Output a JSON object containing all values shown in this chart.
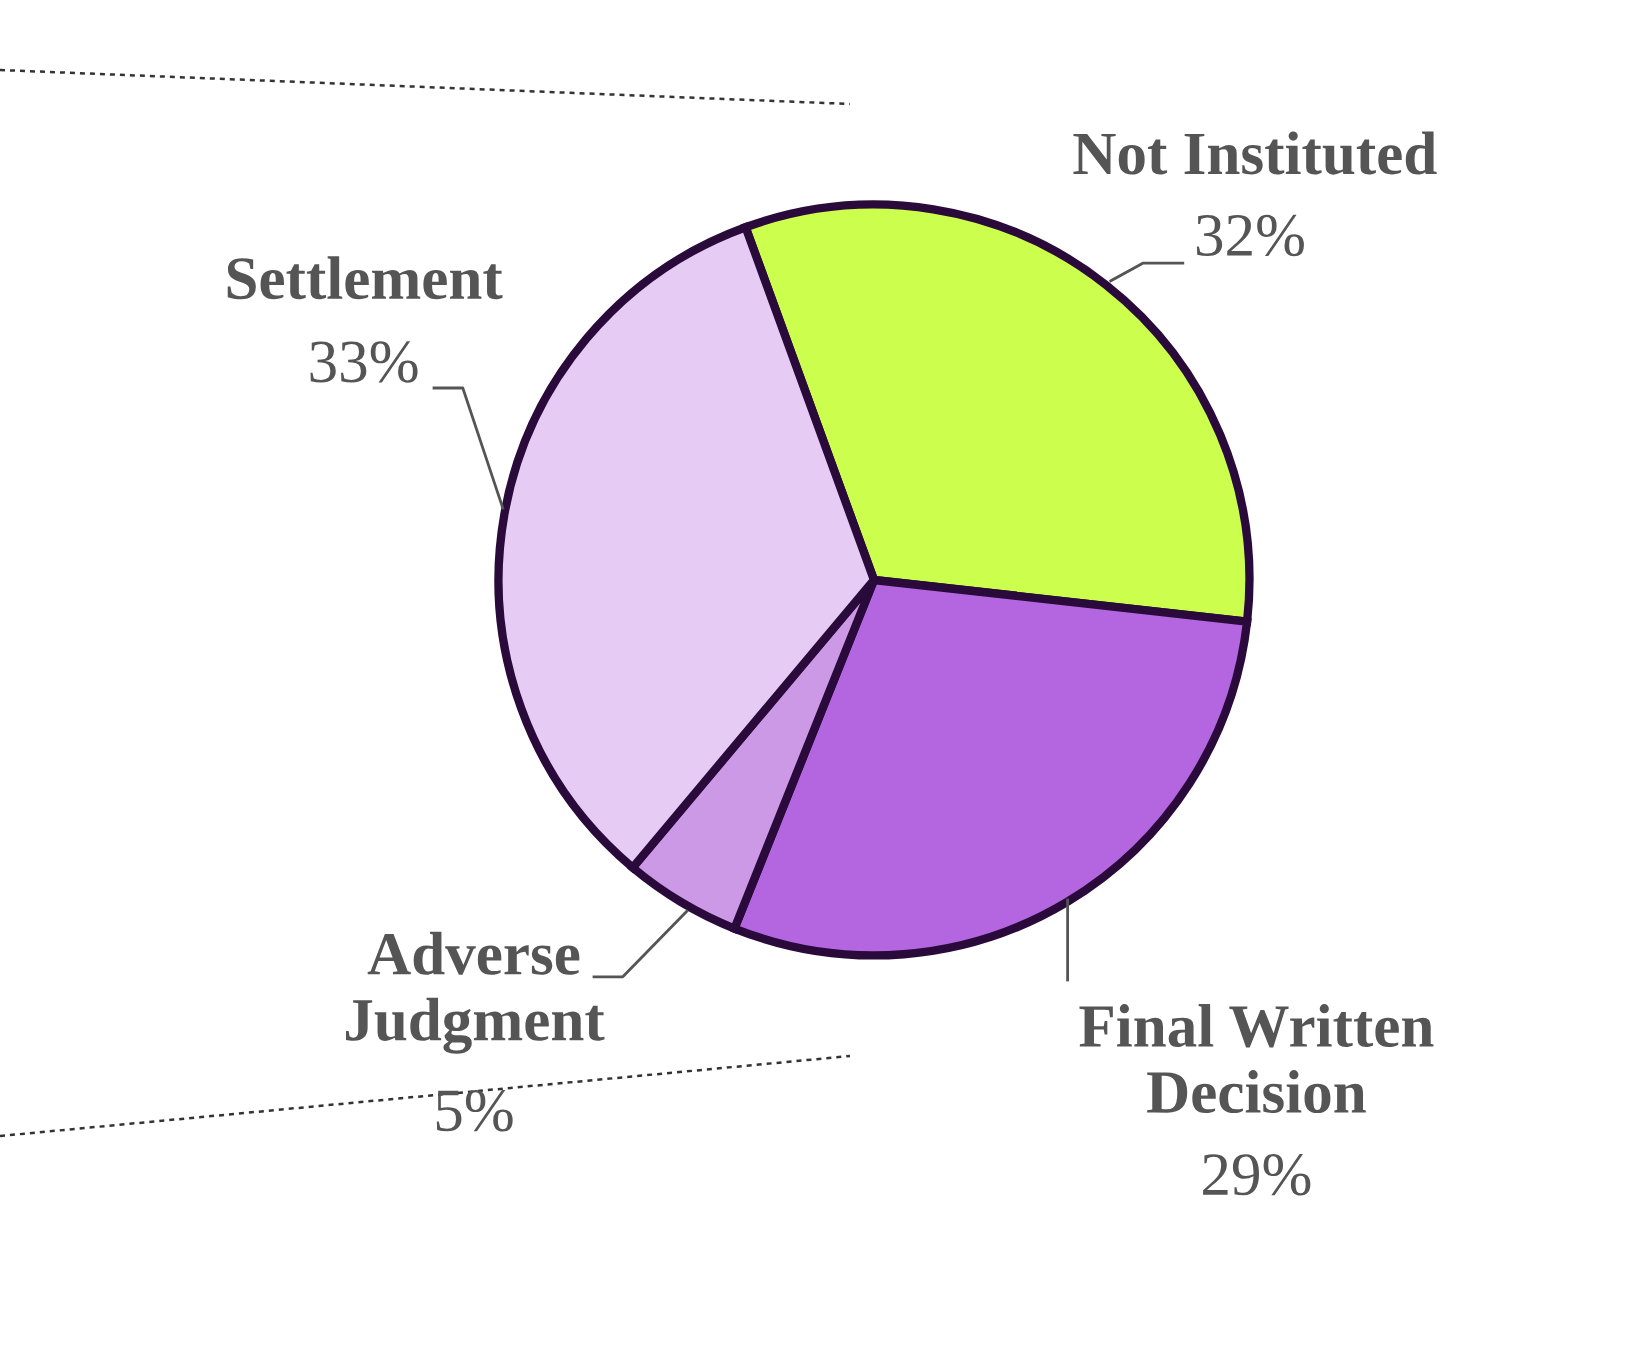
{
  "chart_data": {
    "type": "pie",
    "categories": [
      "Not Instituted",
      "Final Written Decision",
      "Adverse Judgment",
      "Settlement"
    ],
    "values": [
      32,
      29,
      5,
      33
    ],
    "value_labels": [
      "32%",
      "29%",
      "5%",
      "33%"
    ],
    "colors": [
      "#ccff4d",
      "#b366e0",
      "#cc99e6",
      "#e6ccf5"
    ],
    "legend": false
  }
}
